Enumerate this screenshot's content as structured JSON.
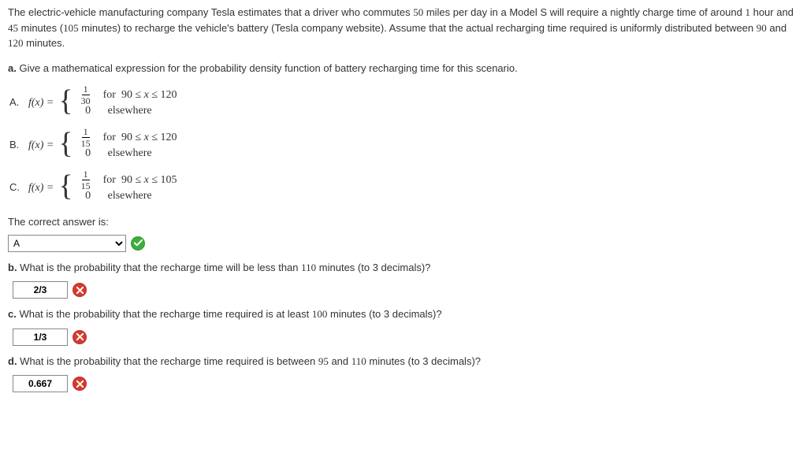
{
  "intro": {
    "text_1": "The electric-vehicle manufacturing company Tesla estimates that a driver who commutes ",
    "miles": "50",
    "text_2": " miles per day in a Model S will require a nightly charge time of around ",
    "hours": "1",
    "text_3": " hour and ",
    "mins": "45",
    "text_4": " minutes (",
    "total_min": "105",
    "text_5": " minutes) to recharge the vehicle's battery (Tesla company website). Assume that the actual recharging time required is uniformly distributed between ",
    "lo": "90",
    "text_6": " and ",
    "hi": "120",
    "text_7": " minutes."
  },
  "a": {
    "label": "a.",
    "prompt": " Give a mathematical expression for the probability density function of battery recharging time for this scenario.",
    "options": [
      {
        "letter": "A.",
        "den": "30",
        "lo": "90",
        "hi": "120"
      },
      {
        "letter": "B.",
        "den": "15",
        "lo": "90",
        "hi": "120"
      },
      {
        "letter": "C.",
        "den": "15",
        "lo": "90",
        "hi": "105"
      }
    ],
    "fx": "f(x) =",
    "for": "for",
    "le": "≤",
    "x": "x",
    "num1": "1",
    "zero": "0",
    "elsewhere": "elsewhere",
    "correct_label": "The correct answer is:",
    "selected": "A",
    "status": "correct"
  },
  "b": {
    "label": "b.",
    "prompt_1": " What is the probability that the recharge time will be less than ",
    "val": "110",
    "prompt_2": " minutes (to 3 decimals)?",
    "answer": "2/3",
    "status": "wrong"
  },
  "c": {
    "label": "c.",
    "prompt_1": "  What is the probability that the recharge time required is at least ",
    "val": "100",
    "prompt_2": " minutes (to 3 decimals)?",
    "answer": "1/3",
    "status": "wrong"
  },
  "d": {
    "label": "d.",
    "prompt_1": " What is the probability that the recharge time required is between ",
    "v1": "95",
    "mid": " and ",
    "v2": "110",
    "prompt_2": " minutes (to 3 decimals)?",
    "answer": "0.667",
    "status": "wrong"
  },
  "icons": {
    "correct_color": "#3fae3f",
    "wrong_color": "#d63a2f"
  }
}
